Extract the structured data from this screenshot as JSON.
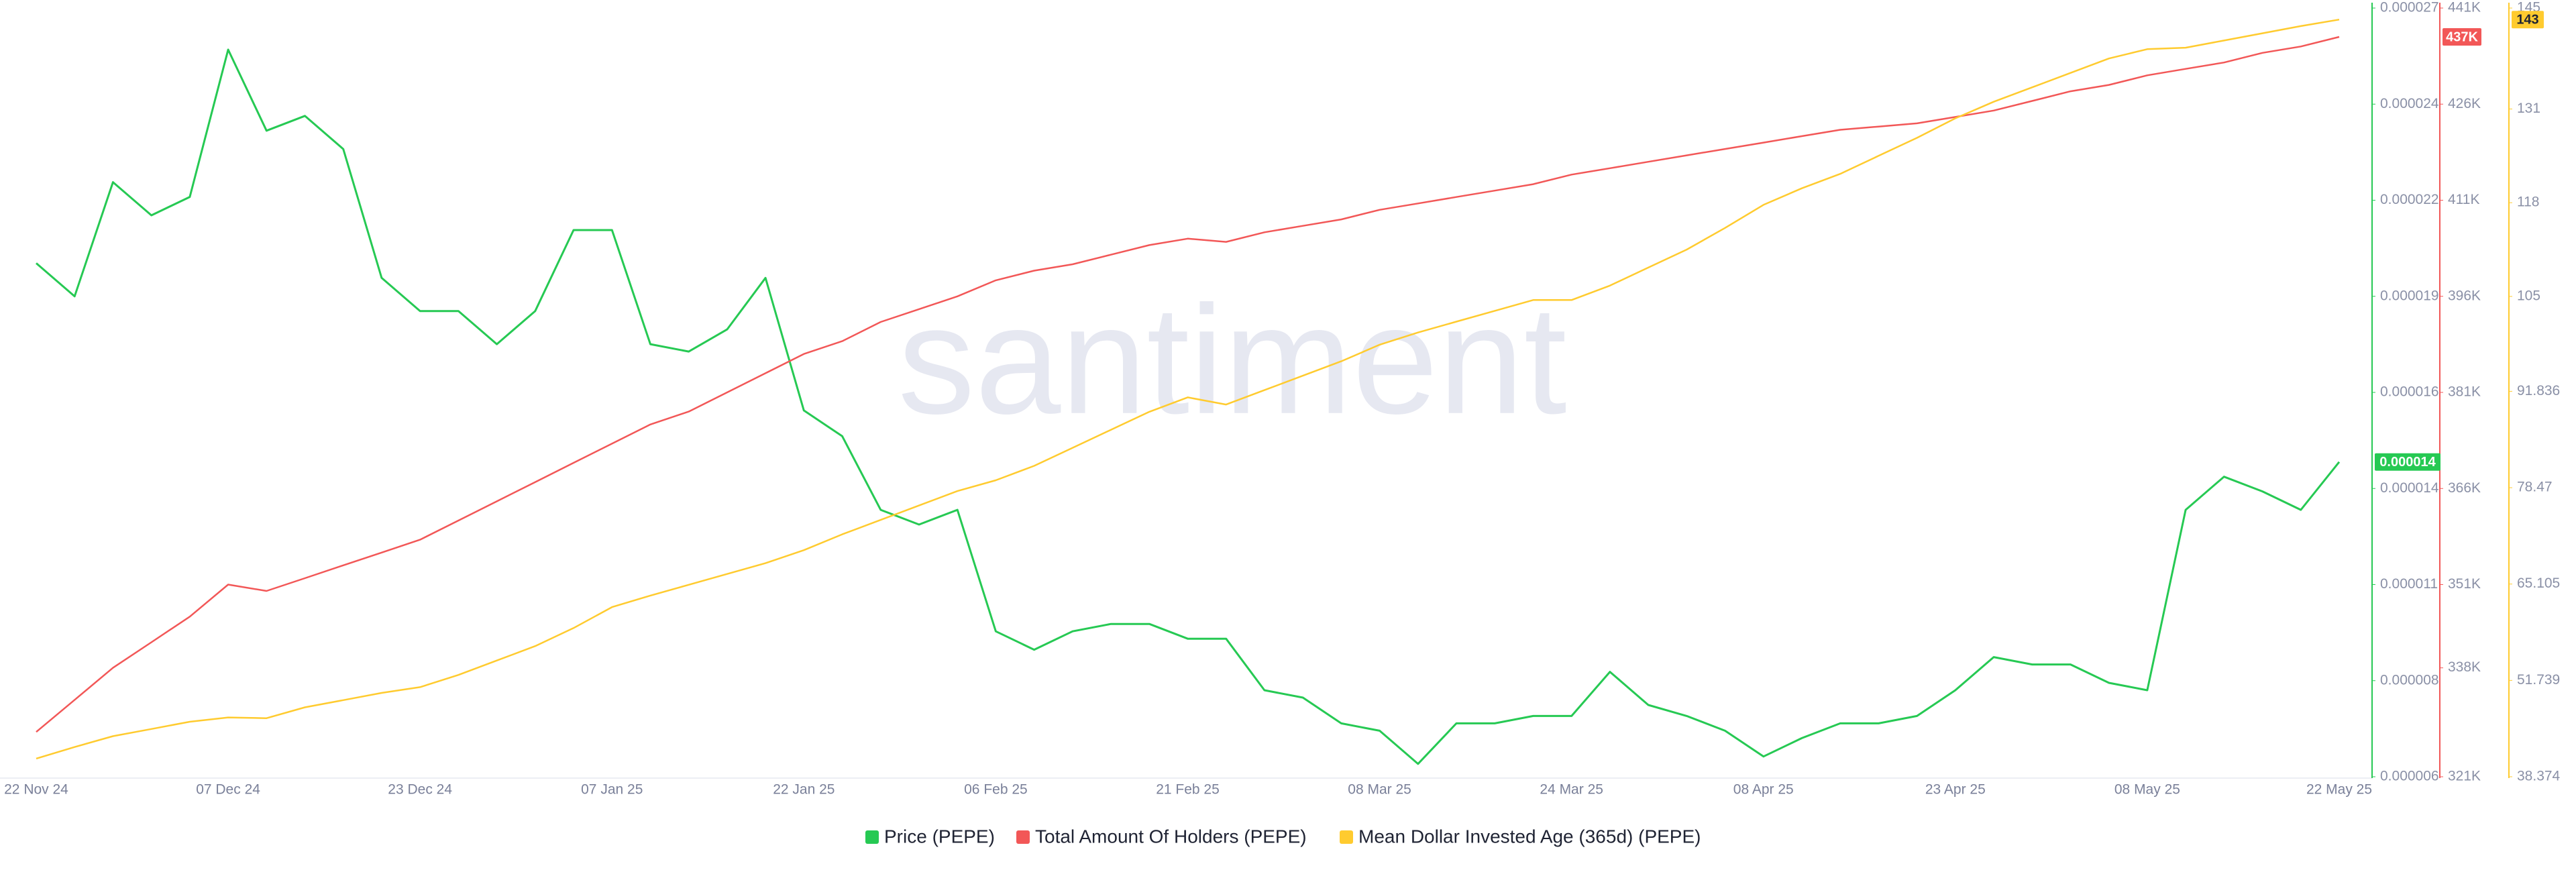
{
  "chart_data": {
    "type": "line",
    "watermark": "santiment",
    "categories": [
      "22 Nov 24",
      null,
      null,
      null,
      null,
      "07 Dec 24",
      null,
      null,
      null,
      null,
      "23 Dec 24",
      null,
      null,
      null,
      null,
      "07 Jan 25",
      null,
      null,
      null,
      null,
      "22 Jan 25",
      null,
      null,
      null,
      null,
      "06 Feb 25",
      null,
      null,
      null,
      null,
      "21 Feb 25",
      null,
      null,
      null,
      null,
      "08 Mar 25",
      null,
      null,
      null,
      null,
      "24 Mar 25",
      null,
      null,
      null,
      null,
      "08 Apr 25",
      null,
      null,
      null,
      null,
      "23 Apr 25",
      null,
      null,
      null,
      null,
      "08 May 25",
      null,
      null,
      null,
      null,
      "22 May 25"
    ],
    "series": [
      {
        "name": "Price (PEPE)",
        "color": "#26c953",
        "axis": "y",
        "last_label": "0.000014",
        "values": [
          1.98e-05,
          1.89e-05,
          2.2e-05,
          2.11e-05,
          2.16e-05,
          2.56e-05,
          2.34e-05,
          2.38e-05,
          2.29e-05,
          1.94e-05,
          1.85e-05,
          1.85e-05,
          1.76e-05,
          1.85e-05,
          2.07e-05,
          2.07e-05,
          1.76e-05,
          1.74e-05,
          1.8e-05,
          1.94e-05,
          1.58e-05,
          1.51e-05,
          1.31e-05,
          1.27e-05,
          1.31e-05,
          9.8e-06,
          9.3e-06,
          9.8e-06,
          1e-05,
          1e-05,
          9.6e-06,
          9.6e-06,
          8.2e-06,
          8e-06,
          7.3e-06,
          7.1e-06,
          6.2e-06,
          7.3e-06,
          7.3e-06,
          7.5e-06,
          7.5e-06,
          8.7e-06,
          7.8e-06,
          7.5e-06,
          7.1e-06,
          6.4e-06,
          6.9e-06,
          7.3e-06,
          7.3e-06,
          7.5e-06,
          8.2e-06,
          9.1e-06,
          8.9e-06,
          8.9e-06,
          8.4e-06,
          8.2e-06,
          1.31e-05,
          1.4e-05,
          1.36e-05,
          1.31e-05,
          1.44e-05
        ]
      },
      {
        "name": "Total Amount Of Holders (PEPE)",
        "color": "#f25757",
        "axis": "y2",
        "last_label": "437K",
        "values": [
          328000,
          333000,
          338000,
          342000,
          346000,
          351000,
          350000,
          352000,
          354000,
          356000,
          358000,
          361000,
          364000,
          367000,
          370000,
          373000,
          376000,
          378000,
          381000,
          384000,
          387000,
          389000,
          392000,
          394000,
          396000,
          398500,
          400000,
          401000,
          402500,
          404000,
          405000,
          404500,
          406000,
          407000,
          408000,
          409500,
          410500,
          411500,
          412500,
          413500,
          415000,
          416000,
          417000,
          418000,
          419000,
          420000,
          421000,
          422000,
          422500,
          423000,
          424000,
          425000,
          426500,
          428000,
          429000,
          430500,
          431500,
          432500,
          434000,
          435000,
          436500
        ]
      },
      {
        "name": "Mean Dollar Invested Age (365d) (PEPE)",
        "color": "#ffcb2f",
        "axis": "y3",
        "last_label": "143",
        "values": [
          40.9,
          42.5,
          44,
          45,
          46,
          46.6,
          46.5,
          48,
          49,
          50,
          50.8,
          52.5,
          54.5,
          56.5,
          59,
          61.9,
          63.5,
          65,
          66.5,
          68,
          69.8,
          72,
          74,
          76,
          78,
          79.5,
          81.5,
          84,
          86.5,
          89,
          91,
          90,
          92,
          94,
          96,
          98.3,
          100,
          101.5,
          103,
          104.5,
          104.5,
          106.5,
          109,
          111.5,
          114.5,
          117.7,
          120,
          122,
          124.5,
          127,
          129.7,
          132,
          134,
          136,
          138,
          139.3,
          139.5,
          140.5,
          141.5,
          142.5,
          143.4
        ]
      }
    ],
    "ylim": [
      5.85e-06,
      2.673e-05
    ],
    "yticks": [
      {
        "value": 5.85e-06,
        "label": "0.000006"
      },
      {
        "value": 8.46e-06,
        "label": "0.000008"
      },
      {
        "value": 1.107e-05,
        "label": "0.000011"
      },
      {
        "value": 1.368e-05,
        "label": "0.000014"
      },
      {
        "value": 1.629e-05,
        "label": "0.000016"
      },
      {
        "value": 1.89e-05,
        "label": "0.000019"
      },
      {
        "value": 2.151e-05,
        "label": "0.000022"
      },
      {
        "value": 2.412e-05,
        "label": "0.000024"
      },
      {
        "value": 2.673e-05,
        "label": "0.000027"
      }
    ],
    "y2lim": [
      321000,
      441000
    ],
    "y2ticks": [
      {
        "value": 321000,
        "label": "321K"
      },
      {
        "value": 338000,
        "label": "338K"
      },
      {
        "value": 351000,
        "label": "351K"
      },
      {
        "value": 366000,
        "label": "366K"
      },
      {
        "value": 381000,
        "label": "381K"
      },
      {
        "value": 396000,
        "label": "396K"
      },
      {
        "value": 411000,
        "label": "411K"
      },
      {
        "value": 426000,
        "label": "426K"
      },
      {
        "value": 441000,
        "label": "441K"
      }
    ],
    "y3lim": [
      38.374,
      145
    ],
    "y3ticks": [
      38.374,
      51.739,
      65.105,
      78.47,
      91.836,
      105,
      118,
      131,
      145
    ],
    "grid": false
  }
}
